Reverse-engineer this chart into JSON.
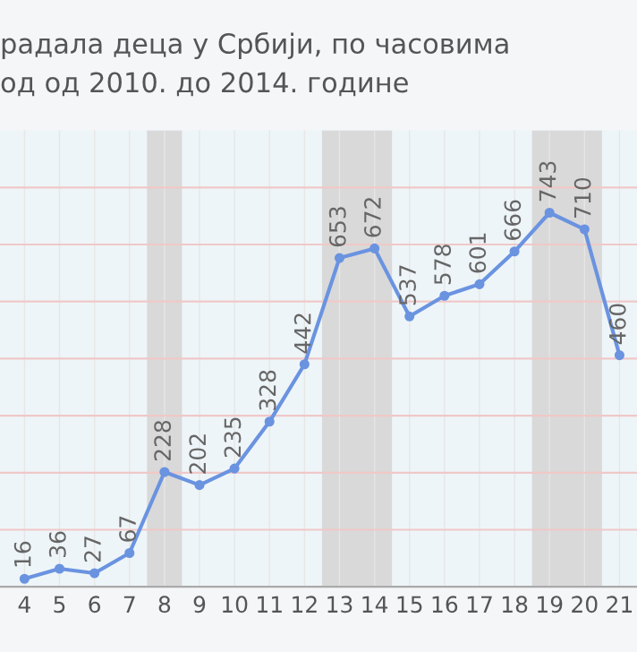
{
  "chart_data": {
    "type": "line",
    "title": "радала деца у Србији, по часовима",
    "subtitle": "од од 2010. до 2014. године",
    "categories": [
      "4",
      "5",
      "6",
      "7",
      "8",
      "9",
      "10",
      "11",
      "12",
      "13",
      "14",
      "15",
      "16",
      "17",
      "18",
      "19",
      "20",
      "21"
    ],
    "series": [
      {
        "color": "#6a93e0",
        "values": [
          16,
          36,
          27,
          67,
          228,
          202,
          235,
          328,
          442,
          653,
          672,
          537,
          578,
          601,
          666,
          743,
          710,
          460
        ]
      }
    ],
    "data_labels": true,
    "marker": "circle",
    "line_style": "solid",
    "grid": true,
    "bands": [
      {
        "axis": "x",
        "from": "8",
        "to": "8",
        "color": "#d9d9d9"
      },
      {
        "axis": "x",
        "from": "13",
        "to": "14",
        "color": "#d9d9d9"
      },
      {
        "axis": "x",
        "from": "19",
        "to": "20",
        "color": "#d9d9d9"
      }
    ]
  }
}
